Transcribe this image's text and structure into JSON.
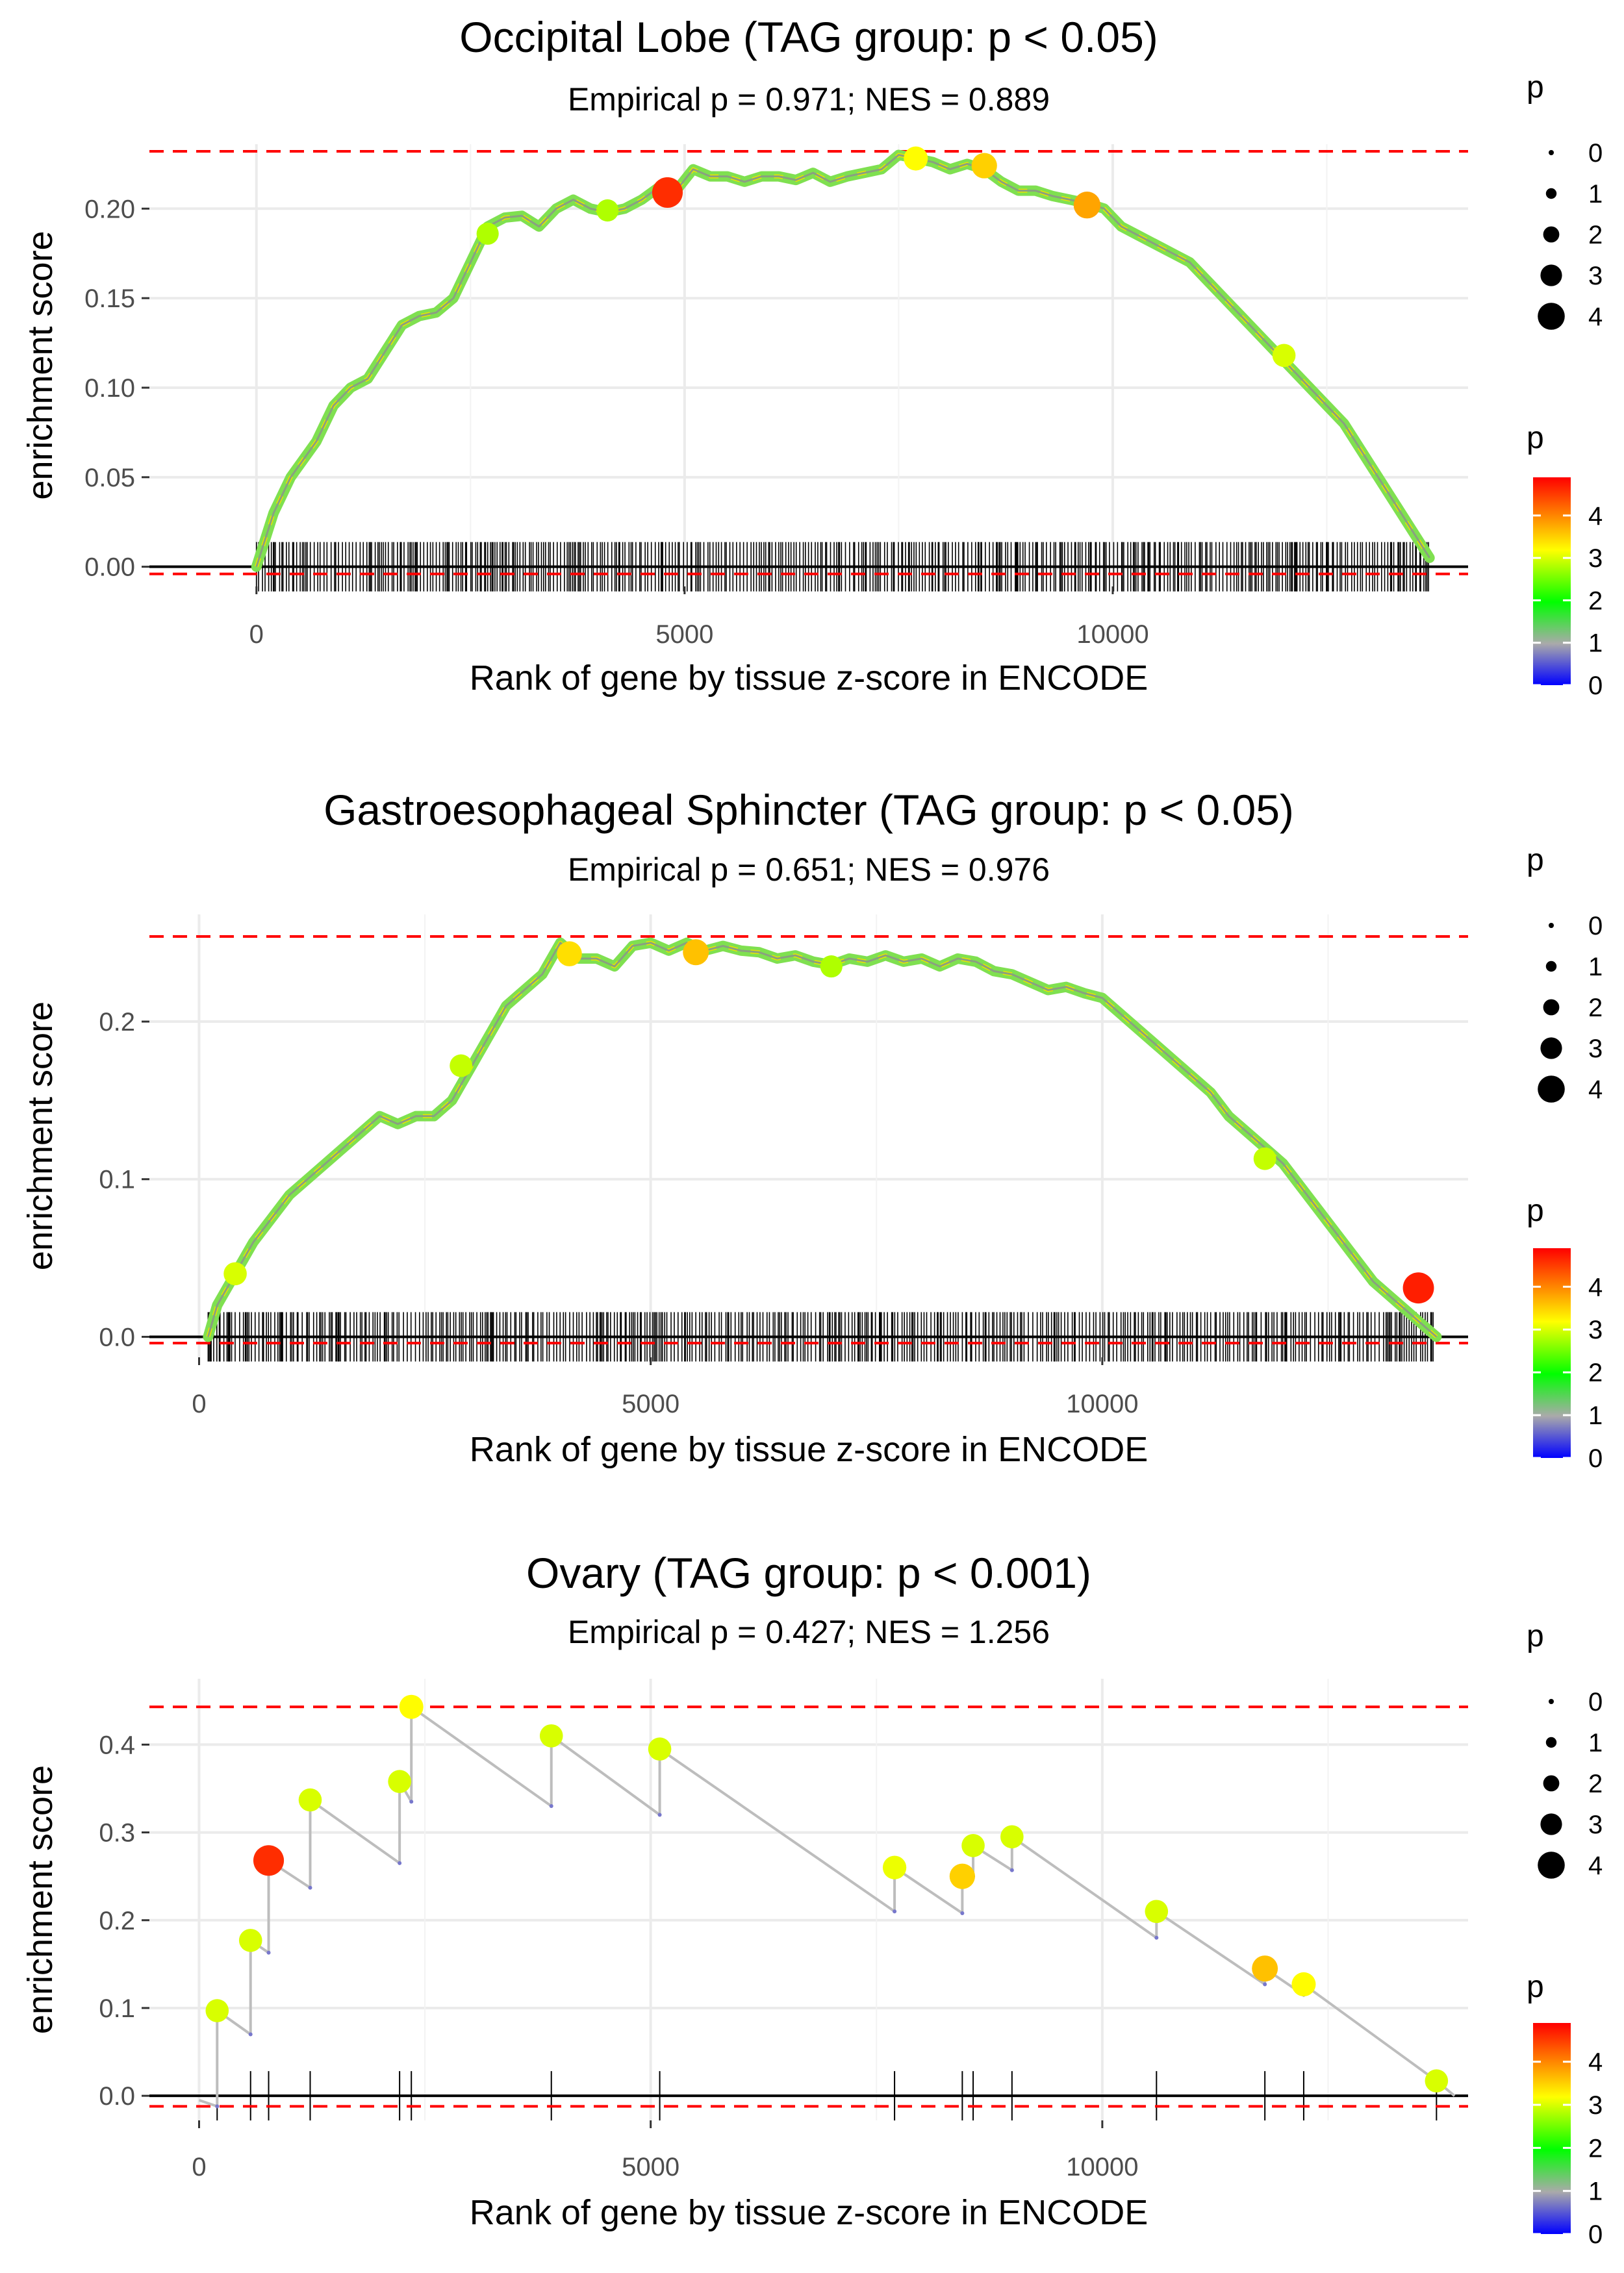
{
  "chart_data": [
    {
      "type": "line",
      "title": "Occipital Lobe (TAG group: p < 0.05)",
      "subtitle": "Empirical p = 0.971; NES = 0.889",
      "xlabel": "Rank of gene by tissue z-score in ENCODE",
      "ylabel": "enrichment score",
      "xlim": [
        -1250,
        14150
      ],
      "ylim": [
        -0.011,
        0.236
      ],
      "xticks": [
        0,
        5000,
        10000
      ],
      "xtick_labels": [
        "0",
        "5000",
        "10000"
      ],
      "yticks": [
        0,
        0.05,
        0.1,
        0.15,
        0.2
      ],
      "ytick_labels": [
        "0.00",
        "0.05",
        "0.10",
        "0.15",
        "0.20"
      ],
      "ref_lines": [
        0.232,
        -0.004
      ],
      "rug": {
        "dense": true,
        "from": 0,
        "to": 13700
      },
      "series": [
        {
          "name": "running enrichment score",
          "x": [
            0,
            200,
            400,
            700,
            900,
            1100,
            1300,
            1500,
            1700,
            1900,
            2100,
            2300,
            2500,
            2700,
            2900,
            3100,
            3300,
            3500,
            3700,
            3900,
            4100,
            4300,
            4500,
            4700,
            4900,
            5100,
            5300,
            5500,
            5700,
            5900,
            6100,
            6300,
            6500,
            6700,
            6900,
            7100,
            7300,
            7500,
            7700,
            7900,
            8100,
            8300,
            8500,
            8700,
            8900,
            9100,
            9300,
            9500,
            9700,
            9900,
            10100,
            10300,
            10500,
            10700,
            10900,
            11100,
            11300,
            11500,
            11700,
            11900,
            12100,
            12300,
            12500,
            12700,
            12900,
            13100,
            13300,
            13500,
            13700
          ],
          "y": [
            0.0,
            0.03,
            0.05,
            0.07,
            0.09,
            0.1,
            0.105,
            0.12,
            0.135,
            0.14,
            0.142,
            0.15,
            0.17,
            0.19,
            0.195,
            0.196,
            0.19,
            0.2,
            0.205,
            0.2,
            0.198,
            0.2,
            0.205,
            0.212,
            0.21,
            0.222,
            0.218,
            0.218,
            0.215,
            0.218,
            0.218,
            0.216,
            0.22,
            0.215,
            0.218,
            0.22,
            0.222,
            0.23,
            0.228,
            0.226,
            0.222,
            0.225,
            0.222,
            0.215,
            0.21,
            0.21,
            0.207,
            0.205,
            0.203,
            0.2,
            0.19,
            0.185,
            0.18,
            0.175,
            0.17,
            0.16,
            0.15,
            0.14,
            0.13,
            0.12,
            0.11,
            0.1,
            0.09,
            0.08,
            0.065,
            0.05,
            0.035,
            0.02,
            0.005
          ]
        }
      ],
      "points": [
        {
          "x": 4800,
          "y": 0.209,
          "p": 4.6
        },
        {
          "x": 9700,
          "y": 0.202,
          "p": 3.8
        },
        {
          "x": 8500,
          "y": 0.224,
          "p": 3.5
        },
        {
          "x": 7700,
          "y": 0.228,
          "p": 3.2
        },
        {
          "x": 2700,
          "y": 0.186,
          "p": 2.8
        },
        {
          "x": 12000,
          "y": 0.118,
          "p": 3.0
        },
        {
          "x": 4100,
          "y": 0.199,
          "p": 2.8
        }
      ],
      "size_legend": {
        "title": "p",
        "labels": [
          "0",
          "1",
          "2",
          "3",
          "4"
        ]
      },
      "color_legend": {
        "title": "p",
        "labels": [
          "4",
          "3",
          "2",
          "1",
          "0"
        ],
        "max": 4.9,
        "colors": [
          "#0000ff",
          "#aaaaaa",
          "#00ff00",
          "#ffff00",
          "#ff0000"
        ]
      }
    },
    {
      "type": "line",
      "title": "Gastroesophageal Sphincter (TAG group: p < 0.05)",
      "subtitle": "Empirical p = 0.651; NES = 0.976",
      "xlabel": "Rank of gene by tissue z-score in ENCODE",
      "ylabel": "enrichment score",
      "xlim": [
        -550,
        14050
      ],
      "ylim": [
        -0.013,
        0.268
      ],
      "xticks": [
        0,
        5000,
        10000
      ],
      "xtick_labels": [
        "0",
        "5000",
        "10000"
      ],
      "yticks": [
        0,
        0.1,
        0.2
      ],
      "ytick_labels": [
        "0.0",
        "0.1",
        "0.2"
      ],
      "ref_lines": [
        0.254,
        -0.004
      ],
      "rug": {
        "dense": true,
        "from": 100,
        "to": 13700
      },
      "series": [
        {
          "name": "running enrichment score",
          "x": [
            100,
            200,
            400,
            600,
            800,
            1000,
            1200,
            1400,
            1600,
            1800,
            2000,
            2200,
            2400,
            2600,
            2800,
            3000,
            3200,
            3400,
            3600,
            3800,
            4000,
            4200,
            4400,
            4600,
            4800,
            5000,
            5200,
            5400,
            5600,
            5800,
            6000,
            6200,
            6400,
            6600,
            6800,
            7000,
            7200,
            7400,
            7600,
            7800,
            8000,
            8200,
            8400,
            8600,
            8800,
            9000,
            9200,
            9400,
            9600,
            9800,
            10000,
            10200,
            10400,
            10600,
            10800,
            11000,
            11200,
            11400,
            11600,
            11800,
            12000,
            12200,
            12400,
            12600,
            12800,
            13000,
            13200,
            13400,
            13700
          ],
          "y": [
            0.0,
            0.02,
            0.04,
            0.06,
            0.075,
            0.09,
            0.1,
            0.11,
            0.12,
            0.13,
            0.14,
            0.135,
            0.14,
            0.14,
            0.15,
            0.17,
            0.19,
            0.21,
            0.22,
            0.23,
            0.25,
            0.24,
            0.24,
            0.235,
            0.248,
            0.25,
            0.245,
            0.25,
            0.245,
            0.248,
            0.245,
            0.244,
            0.24,
            0.242,
            0.238,
            0.236,
            0.24,
            0.238,
            0.242,
            0.238,
            0.24,
            0.235,
            0.24,
            0.238,
            0.232,
            0.23,
            0.225,
            0.22,
            0.222,
            0.218,
            0.215,
            0.205,
            0.195,
            0.185,
            0.175,
            0.165,
            0.155,
            0.14,
            0.13,
            0.12,
            0.11,
            0.095,
            0.08,
            0.065,
            0.05,
            0.035,
            0.025,
            0.015,
            0.0
          ]
        }
      ],
      "points": [
        {
          "x": 13500,
          "y": 0.031,
          "p": 4.7
        },
        {
          "x": 5500,
          "y": 0.244,
          "p": 3.6
        },
        {
          "x": 4100,
          "y": 0.243,
          "p": 3.4
        },
        {
          "x": 400,
          "y": 0.04,
          "p": 3.0
        },
        {
          "x": 2900,
          "y": 0.172,
          "p": 2.9
        },
        {
          "x": 7000,
          "y": 0.235,
          "p": 2.8
        },
        {
          "x": 11800,
          "y": 0.113,
          "p": 2.9
        }
      ],
      "size_legend": {
        "title": "p",
        "labels": [
          "0",
          "1",
          "2",
          "3",
          "4"
        ]
      },
      "color_legend": {
        "title": "p",
        "labels": [
          "4",
          "3",
          "2",
          "1",
          "0"
        ],
        "max": 4.9,
        "colors": [
          "#0000ff",
          "#aaaaaa",
          "#00ff00",
          "#ffff00",
          "#ff0000"
        ]
      }
    },
    {
      "type": "line",
      "title": "Ovary (TAG group: p < 0.001)",
      "subtitle": "Empirical p = 0.427; NES = 1.256",
      "xlabel": "Rank of gene by tissue z-score in ENCODE",
      "ylabel": "enrichment score",
      "xlim": [
        -550,
        14050
      ],
      "ylim": [
        -0.028,
        0.475
      ],
      "xticks": [
        0,
        5000,
        10000
      ],
      "xtick_labels": [
        "0",
        "5000",
        "10000"
      ],
      "yticks": [
        0,
        0.1,
        0.2,
        0.3,
        0.4
      ],
      "ytick_labels": [
        "0.0",
        "0.1",
        "0.2",
        "0.3",
        "0.4"
      ],
      "ref_lines": [
        0.443,
        -0.012
      ],
      "rug": {
        "dense": false,
        "positions": [
          200,
          570,
          770,
          1230,
          2220,
          2350,
          3900,
          5100,
          7700,
          8450,
          8570,
          9000,
          10600,
          11800,
          12230,
          13700
        ]
      },
      "series": [
        {
          "name": "running enrichment score",
          "x": [
            0,
            200,
            200,
            570,
            570,
            770,
            770,
            1230,
            1230,
            2220,
            2220,
            2350,
            2350,
            3900,
            3900,
            5100,
            5100,
            7700,
            7700,
            8450,
            8450,
            8570,
            8570,
            9000,
            9000,
            10600,
            10600,
            11800,
            11800,
            12230,
            12230,
            13700,
            13900
          ],
          "y": [
            -0.005,
            -0.012,
            0.097,
            0.07,
            0.177,
            0.163,
            0.268,
            0.237,
            0.337,
            0.265,
            0.358,
            0.335,
            0.443,
            0.33,
            0.41,
            0.32,
            0.395,
            0.21,
            0.26,
            0.208,
            0.25,
            0.25,
            0.285,
            0.257,
            0.295,
            0.18,
            0.21,
            0.127,
            0.145,
            0.115,
            0.127,
            0.017,
            0.0
          ]
        }
      ],
      "points": [
        {
          "x": 200,
          "y": 0.097,
          "p": 3.0
        },
        {
          "x": 570,
          "y": 0.177,
          "p": 3.0
        },
        {
          "x": 770,
          "y": 0.268,
          "p": 4.6
        },
        {
          "x": 1230,
          "y": 0.337,
          "p": 3.0
        },
        {
          "x": 2220,
          "y": 0.358,
          "p": 3.0
        },
        {
          "x": 2350,
          "y": 0.443,
          "p": 3.2
        },
        {
          "x": 3900,
          "y": 0.41,
          "p": 3.0
        },
        {
          "x": 5100,
          "y": 0.395,
          "p": 3.0
        },
        {
          "x": 7700,
          "y": 0.26,
          "p": 3.1
        },
        {
          "x": 8450,
          "y": 0.25,
          "p": 3.5
        },
        {
          "x": 8570,
          "y": 0.285,
          "p": 3.0
        },
        {
          "x": 9000,
          "y": 0.295,
          "p": 3.0
        },
        {
          "x": 10600,
          "y": 0.21,
          "p": 3.0
        },
        {
          "x": 11800,
          "y": 0.145,
          "p": 3.6
        },
        {
          "x": 12230,
          "y": 0.127,
          "p": 3.2
        },
        {
          "x": 13700,
          "y": 0.017,
          "p": 3.0
        }
      ],
      "size_legend": {
        "title": "p",
        "labels": [
          "0",
          "1",
          "2",
          "3",
          "4"
        ]
      },
      "color_legend": {
        "title": "p",
        "labels": [
          "4",
          "3",
          "2",
          "1",
          "0"
        ],
        "max": 4.9,
        "colors": [
          "#0000ff",
          "#aaaaaa",
          "#00ff00",
          "#ffff00",
          "#ff0000"
        ]
      }
    }
  ]
}
